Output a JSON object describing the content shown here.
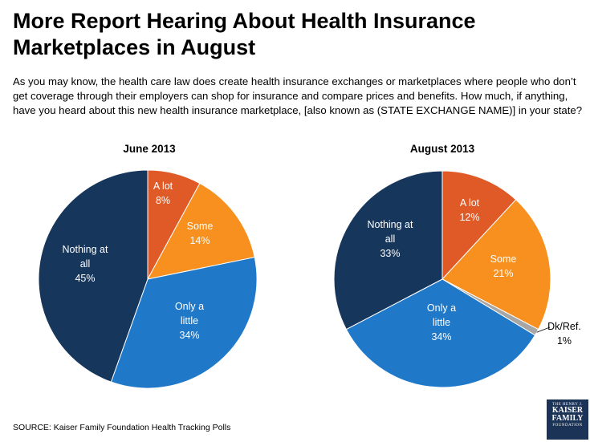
{
  "title": "More Report Hearing About Health Insurance Marketplaces in August",
  "question": "As you may know, the health care law does create health insurance exchanges or marketplaces where people who don’t get coverage through their employers can shop for insurance and compare prices and benefits. How much, if anything, have you heard about this new health insurance marketplace, [also known as (STATE EXCHANGE NAME)] in your state?",
  "source": "SOURCE: Kaiser Family Foundation Health Tracking Polls",
  "logo": {
    "top": "THE HENRY J.",
    "line1": "KAISER",
    "line2": "FAMILY",
    "bottom": "FOUNDATION"
  },
  "colors": {
    "a_lot": "#E05A28",
    "some": "#F7901E",
    "only_a_little": "#1F78C8",
    "nothing": "#16365C",
    "dk_ref": "#A6A6A6"
  },
  "chart_data": [
    {
      "type": "pie",
      "title": "June 2013",
      "slices": [
        {
          "label": "A lot",
          "value": 8,
          "pct_label": "8%"
        },
        {
          "label": "Some",
          "value": 14,
          "pct_label": "14%"
        },
        {
          "label": "Only a little",
          "value": 34,
          "pct_label": "34%"
        },
        {
          "label": "Nothing at all",
          "value": 45,
          "pct_label": "45%"
        }
      ]
    },
    {
      "type": "pie",
      "title": "August 2013",
      "slices": [
        {
          "label": "A lot",
          "value": 12,
          "pct_label": "12%"
        },
        {
          "label": "Some",
          "value": 21,
          "pct_label": "21%"
        },
        {
          "label": "Dk/Ref.",
          "value": 1,
          "pct_label": "1%"
        },
        {
          "label": "Only a little",
          "value": 34,
          "pct_label": "34%"
        },
        {
          "label": "Nothing at all",
          "value": 33,
          "pct_label": "33%"
        }
      ]
    }
  ]
}
